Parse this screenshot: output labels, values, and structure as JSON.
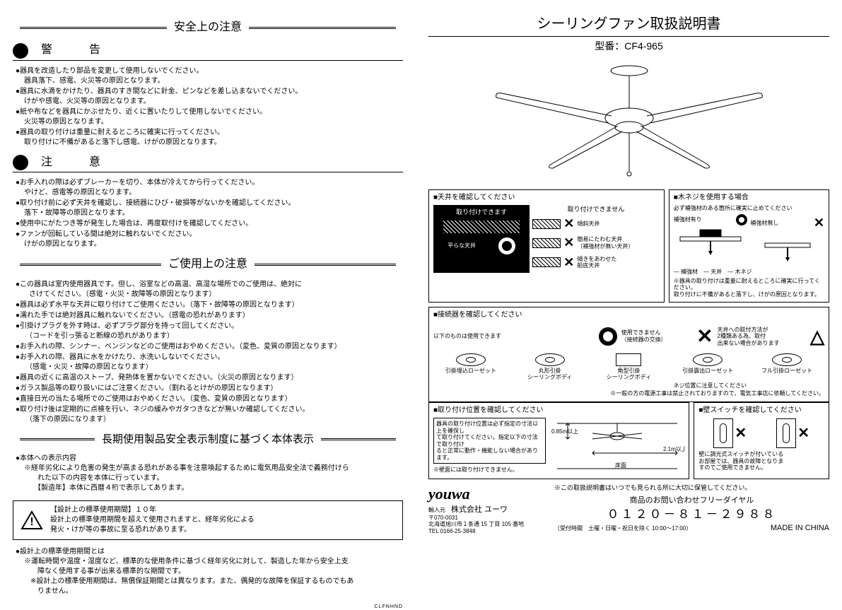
{
  "left": {
    "title1": "安全上の注意",
    "warning_label": "警　告",
    "warning_items": [
      {
        "main": "器具を改造したり部品を変更して使用しないでください。",
        "sub": "器具落下、感電、火災等の原因となります。"
      },
      {
        "main": "器具に水滴をかけたり、器具のすき間などに針金、ピンなどを差し込まないでください。",
        "sub": "けがや感電、火災等の原因となります。"
      },
      {
        "main": "紙や布などを器具にかぶせたり、近くに置いたりして使用しないでください。",
        "sub": "火災等の原因となります。"
      },
      {
        "main": "器具の取り付けは重量に耐えるところに確実に行ってください。",
        "sub": "取り付けに不備があると落下し感電、けがの原因となります。"
      }
    ],
    "caution_label": "注　意",
    "caution_items": [
      {
        "main": "お手入れの際は必ずブレーカーを切り、本体が冷えてから行ってください。",
        "sub": "やけど、感電等の原因となります。"
      },
      {
        "main": "取り付け前に必ず天井を確認し、接続器にひび・破損等がないかを確認してください。",
        "sub": "落下・故障等の原因となります。"
      },
      {
        "main": "使用中にがたつき等が発生した場合は、再度取付けを確認してください。",
        "sub": ""
      },
      {
        "main": "ファンが回転している間は絶対に触れないでください。",
        "sub": "けがの原因となります。"
      }
    ],
    "title2": "ご使用上の注意",
    "usage_items": [
      "この器具は室内使用器具です。但し、浴室などの高温、高湿な場所でのご使用は、絶対に<br>　さけてください。（感電・火災・故障等の原因となります）",
      "器具は必ず水平な天井に取り付けてご使用ください。（落下・故障等の原因となります）",
      "濡れた手では絶対器具に触れないでください。（感電の恐れがあります）",
      "引掛けプラグを外す時は、必ずプラグ部分を持って回してください。<br>　（コードを引っ張ると断線の恐れがあります）",
      "お手入れの際、シンナー、ベンジンなどのご使用はおやめください。（変色、変質の原因となります）",
      "お手入れの際、器具に水をかけたり、水洗いしないでください。<br>　（感電・火災・故障の原因となります）",
      "器具の近くに高温のストーブ、発熱体を置かないでください。（火災の原因となります）",
      "ガラス製品等の取り扱いにはご注意ください。（割れるとけがの原因となります）",
      "直接日光の当たる場所でのご使用はおやめください。（変色、変質の原因となります）",
      "取り付け後は定期的に点検を行い、ネジの緩みやガタつきなどが無いか確認してください。<br>　（落下の原因になります）"
    ],
    "title3": "長期使用製品安全表示制度に基づく本体表示",
    "display_intro_label": "本体への表示内容",
    "display_intro": "※経年劣化により危害の発生が高まる恐れがある事を注意喚起するために電気用品安全法で義務付けら<br>　れた以下の内容を本体に行っています。<br>　【製造年】本体に西暦４桁で表示してあります。",
    "box_lines": "【設計上の標準使用期間】１０年<br>設計上の標準使用期間を超えて使用されますと、経年劣化による<br>発火・けが等の事故に至る恐れがあります。",
    "std_label": "設計上の標準使用期間とは",
    "std_text": "※運転時間や温度・湿度など、標準的な使用条件に基づく経年劣化に対して、製造した年から安全上支<br>　障なく使用する事が出来る標準的な期間です。<br>※設計上の標準使用期間は、無償保証期間とは異なります。また、偶発的な故障を保証するものでもあ<br>　りません。",
    "footer_code": "CLFNHND"
  },
  "right": {
    "product_title": "シーリングファン取扱説明書",
    "model": "型番：CF4-965",
    "ceiling_title": "天井を確認してください",
    "ceiling_ok": "取り付けできます",
    "ceiling_ng": "取り付けできません",
    "ceiling_flat": "平らな天井",
    "ceiling_types": [
      "傾斜天井",
      "簡易にたわむ天井\n（補強材が無い天井）",
      "傾きをあわせた\n船底天井"
    ],
    "screw_title": "木ネジを使用する場合",
    "screw_note": "必ず補強材のある箇所に確実に止めてください",
    "screw_yes": "補強材有り",
    "screw_no": "補強材無し",
    "screw_labels": {
      "a": "補強材",
      "b": "天井",
      "c": "木ネジ"
    },
    "screw_warn": "※器具の取り付けは重量に耐えるところに確実に行ってく\nださい。\n取り付けに不備があると落下し、けがの原因となります。",
    "conn_title": "接続器を確認してください",
    "conn_ok": "以下のものは使用できます",
    "conn_ng": "使用できません\n（接続器の交換）",
    "conn_tri": "天井への取付方法が\n2種類ある為、取付\n出来ない場合があります",
    "conn_names": [
      "引掛埋込ローゼット",
      "丸形引掛\nシーリングボディ",
      "角型引掛\nシーリングボディ",
      "引掛露出ローゼット",
      "フル引掛ローゼット"
    ],
    "conn_footnote": "ネジ位置に注意してください",
    "conn_foot2": "※一般の方の電源工事は禁止されておりますので、電気工事店に依頼してください。",
    "pos_title": "取り付け位置を確認してください",
    "pos_text": "器具の取り付け位置は必ず指定の寸法以上を確保し\nて取り付けてください。指定以下の寸法で取り付け\nると正常に動作・機能しない場合があります。",
    "pos_text2": "※壁面には取り付けできません。",
    "pos_dims": {
      "h": "0.85m以上",
      "w": "2.1m以上",
      "floor": "床面"
    },
    "wall_title": "壁スイッチを確認してください",
    "wall_text": "壁に調光式スイッチが付いている\nお部屋では、器具の故障となりま\nすのでご使用できません。",
    "brand": "youwa",
    "importer_label": "輸入元",
    "importer": "株式会社 ユーワ",
    "zip": "〒070-0031",
    "addr": "北海道旭川市１条通 15 丁目 105 番地",
    "tel": "TEL 0166-25-3848",
    "keep": "※この取扱説明書はいつでも見られる所に大切に保管してください。",
    "contact": "商品のお問い合わせフリーダイヤル",
    "phone": "０１２０－８１－２９８８",
    "hours": "（受付時間　土曜・日曜・祝日を除く 10:00～17:00）",
    "made": "MADE IN CHINA"
  }
}
